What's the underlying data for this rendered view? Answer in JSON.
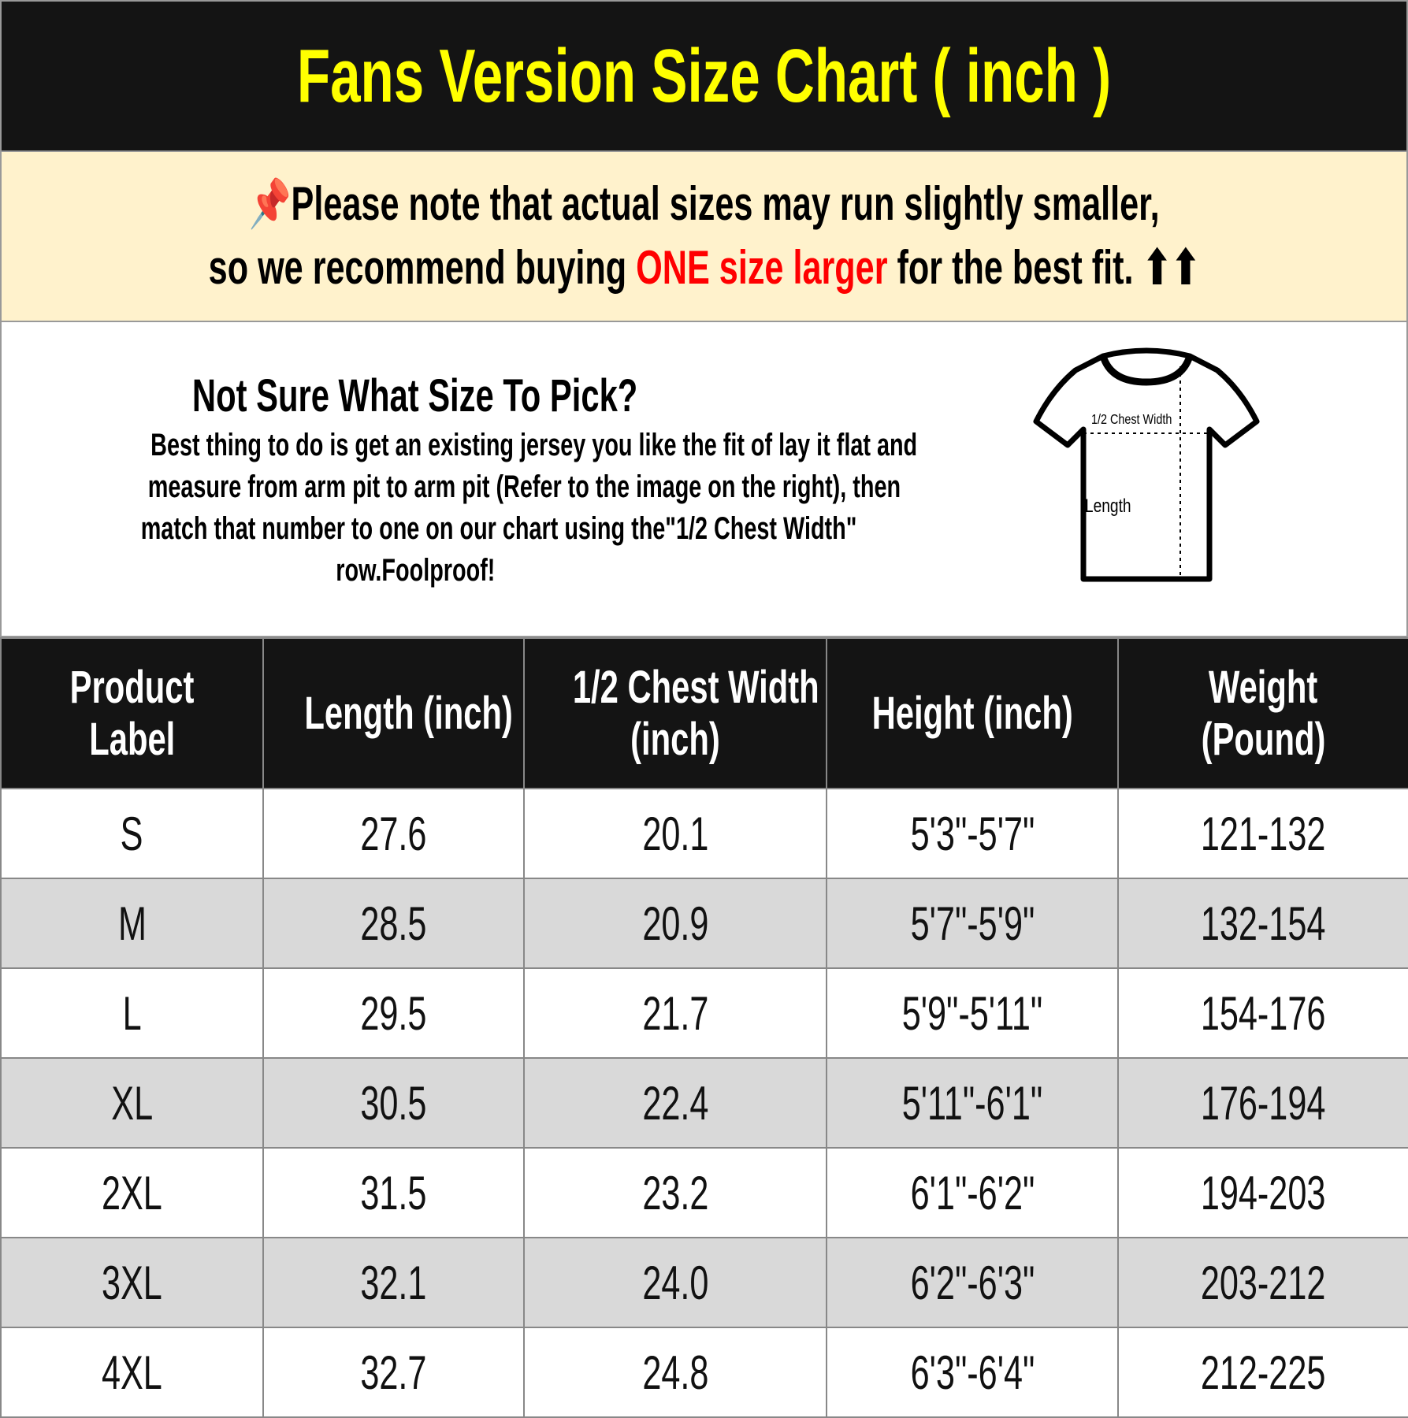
{
  "title": "Fans Version Size Chart ( inch )",
  "notice": {
    "icon": "pushpin-icon",
    "line1": "Please note that actual sizes may run slightly smaller,",
    "line2_pre": "so we recommend buying ",
    "line2_highlight": "ONE size larger",
    "line2_post": " for the best fit.",
    "arrows": "⬆⬆",
    "highlight_color": "#ff0000"
  },
  "info": {
    "heading": "Not Sure What Size To Pick?",
    "lines": [
      "Best thing to do is get an existing jersey you like the fit of lay it flat and",
      "measure from arm pit to arm pit (Refer to the image on the right), then",
      "match that number to one on our chart using the\"1/2 Chest Width\"",
      "row.Foolproof!"
    ],
    "diagram": {
      "chest_label": "1/2 Chest Width",
      "length_label": "Length"
    }
  },
  "table": {
    "headers": [
      [
        "Product",
        "Label"
      ],
      [
        "Length (inch)",
        ""
      ],
      [
        "1/2 Chest Width",
        "(inch)"
      ],
      [
        "Height (inch)",
        ""
      ],
      [
        "Weight",
        "(Pound)"
      ]
    ],
    "rows": [
      [
        "S",
        "27.6",
        "20.1",
        "5'3\"-5'7\"",
        "121-132"
      ],
      [
        "M",
        "28.5",
        "20.9",
        "5'7\"-5'9\"",
        "132-154"
      ],
      [
        "L",
        "29.5",
        "21.7",
        "5'9\"-5'11\"",
        "154-176"
      ],
      [
        "XL",
        "30.5",
        "22.4",
        "5'11\"-6'1\"",
        "176-194"
      ],
      [
        "2XL",
        "31.5",
        "23.2",
        "6'1\"-6'2\"",
        "194-203"
      ],
      [
        "3XL",
        "32.1",
        "24.0",
        "6'2\"-6'3\"",
        "203-212"
      ],
      [
        "4XL",
        "32.7",
        "24.8",
        "6'3\"-6'4\"",
        "212-225"
      ]
    ]
  },
  "colors": {
    "title_bg": "#141414",
    "title_text": "#ffff00",
    "notice_bg": "#fff2cc",
    "alt_row": "#d9d9d9"
  }
}
